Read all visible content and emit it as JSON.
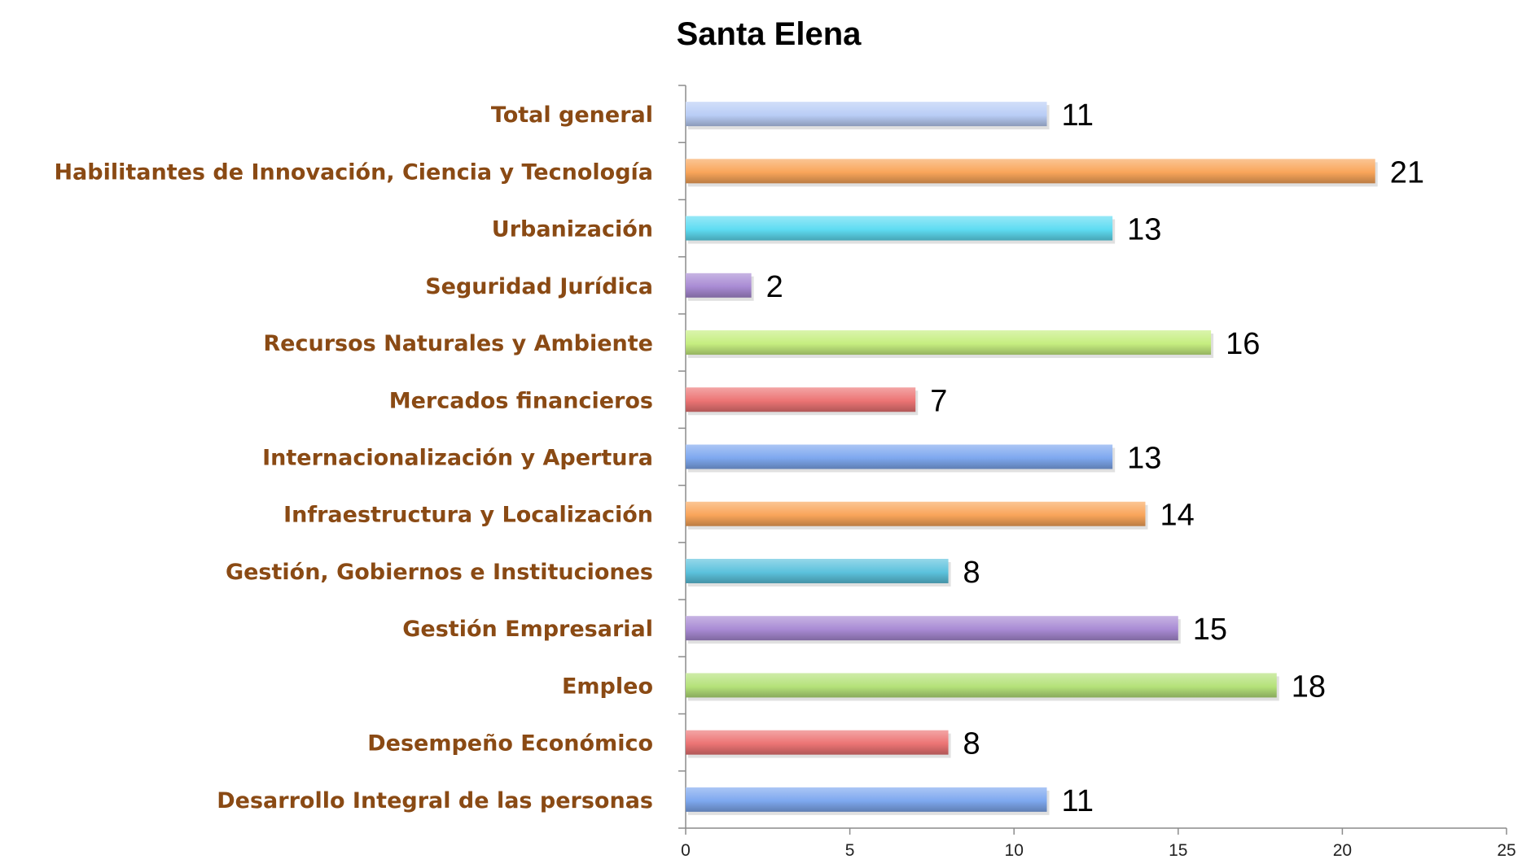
{
  "chart_data": {
    "type": "bar",
    "orientation": "horizontal",
    "title": "Santa Elena",
    "xlabel": "",
    "ylabel": "",
    "categories": [
      "Total general",
      "Habilitantes de Innovación, Ciencia y Tecnología",
      "Urbanización",
      "Seguridad Jurídica",
      "Recursos Naturales y Ambiente",
      "Mercados financieros",
      "Internacionalización y Apertura",
      "Infraestructura y Localización",
      "Gestión, Gobiernos e Instituciones",
      "Gestión Empresarial",
      "Empleo",
      "Desempeño Económico",
      "Desarrollo Integral de las personas"
    ],
    "values": [
      11,
      21,
      13,
      2,
      16,
      7,
      13,
      14,
      8,
      15,
      18,
      8,
      11
    ],
    "value_labels": [
      "11",
      "21",
      "13",
      "2",
      "16",
      "7",
      "13",
      "14",
      "8",
      "15",
      "18",
      "8",
      "11"
    ],
    "colors": [
      "#b9cdf6",
      "#f9a55a",
      "#5fdcf2",
      "#a98bd4",
      "#c6ee80",
      "#ec7474",
      "#7ea8ef",
      "#f9a55a",
      "#5cc2dd",
      "#a98bd4",
      "#b5e27a",
      "#ec7474",
      "#7ea8ef"
    ],
    "xlim": [
      0,
      25
    ],
    "xticks": [
      "0",
      "5",
      "10",
      "15",
      "20",
      "25"
    ],
    "grid": false,
    "legend": "none",
    "category_label_color": "#8a4a14"
  }
}
